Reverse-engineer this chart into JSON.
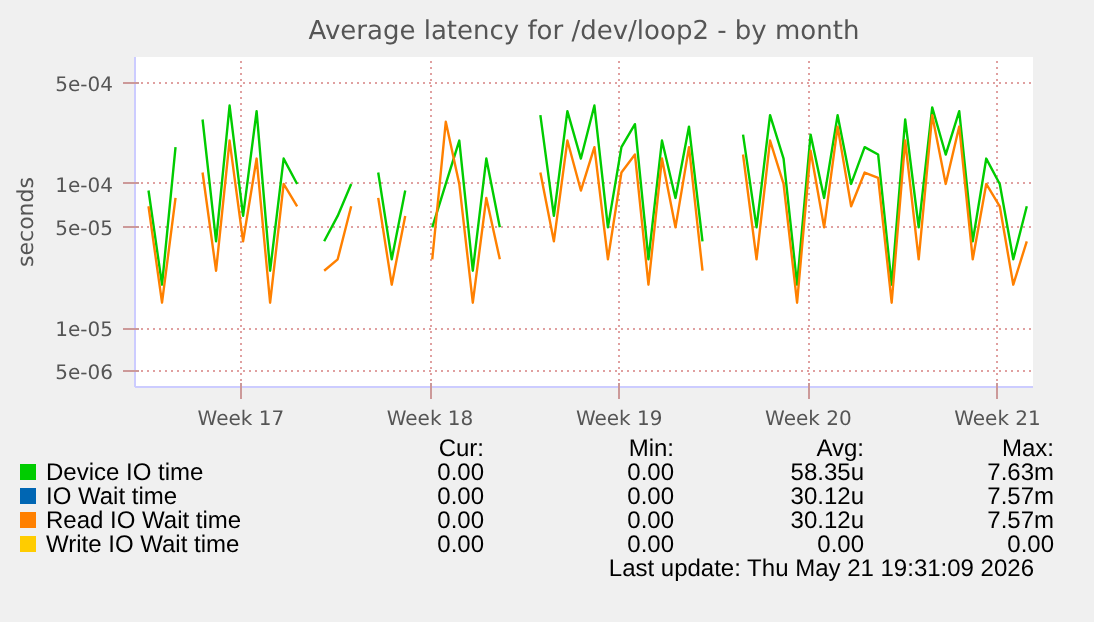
{
  "chart_data": {
    "type": "line",
    "title": "Average latency for /dev/loop2 - by month",
    "ylabel": "seconds",
    "x": [
      "2026-04-19T02:00",
      "2026-04-19T14:00",
      "2026-04-20T02:00",
      "2026-04-20T14:00",
      "2026-04-21T02:00",
      "2026-04-21T14:00",
      "2026-04-22T02:00",
      "2026-04-22T14:00",
      "2026-04-23T02:00",
      "2026-04-23T14:00",
      "2026-04-24T02:00",
      "2026-04-24T14:00",
      "2026-04-25T02:00",
      "2026-04-25T14:00",
      "2026-04-26T02:00",
      "2026-04-26T14:00",
      "2026-04-27T02:00",
      "2026-04-27T14:00",
      "2026-04-28T02:00",
      "2026-04-28T14:00",
      "2026-04-29T02:00",
      "2026-04-29T14:00",
      "2026-04-30T02:00",
      "2026-04-30T14:00",
      "2026-05-01T02:00",
      "2026-05-01T14:00",
      "2026-05-02T02:00",
      "2026-05-02T14:00",
      "2026-05-03T02:00",
      "2026-05-03T14:00",
      "2026-05-04T02:00",
      "2026-05-04T14:00",
      "2026-05-05T02:00",
      "2026-05-05T14:00",
      "2026-05-06T02:00",
      "2026-05-06T14:00",
      "2026-05-07T02:00",
      "2026-05-07T14:00",
      "2026-05-08T02:00",
      "2026-05-08T14:00",
      "2026-05-09T02:00",
      "2026-05-09T14:00",
      "2026-05-10T02:00",
      "2026-05-10T14:00",
      "2026-05-11T02:00",
      "2026-05-11T14:00",
      "2026-05-12T02:00",
      "2026-05-12T14:00",
      "2026-05-13T02:00",
      "2026-05-13T14:00",
      "2026-05-14T02:00",
      "2026-05-14T14:00",
      "2026-05-15T02:00",
      "2026-05-15T14:00",
      "2026-05-16T02:00",
      "2026-05-16T14:00",
      "2026-05-17T02:00",
      "2026-05-17T14:00",
      "2026-05-18T02:00",
      "2026-05-18T14:00",
      "2026-05-19T02:00",
      "2026-05-19T14:00",
      "2026-05-20T02:00",
      "2026-05-20T14:00",
      "2026-05-21T02:00",
      "2026-05-21T14:00"
    ],
    "xlim": [
      "2026-04-18T14:00",
      "2026-05-21T19:31"
    ],
    "xticks": [
      {
        "value": "2026-04-22T12:00",
        "label": "Week 17"
      },
      {
        "value": "2026-04-29T12:00",
        "label": "Week 18"
      },
      {
        "value": "2026-05-06T12:00",
        "label": "Week 19"
      },
      {
        "value": "2026-05-13T12:00",
        "label": "Week 20"
      },
      {
        "value": "2026-05-20T12:00",
        "label": "Week 21"
      }
    ],
    "ylim": [
      3.9e-06,
      0.00076
    ],
    "yticks": [
      {
        "value": 5e-06,
        "label": "5e-06"
      },
      {
        "value": 1e-05,
        "label": "1e-05"
      },
      {
        "value": 5e-05,
        "label": "5e-05"
      },
      {
        "value": 0.0001,
        "label": "1e-04"
      },
      {
        "value": 0.0005,
        "label": "5e-04"
      }
    ],
    "log": "y",
    "grid": true,
    "legend": "bottom",
    "marker": "none",
    "line_style": "solid",
    "series": [
      {
        "name": "Device IO time",
        "color": "#00cc00",
        "values": [
          9e-05,
          2e-05,
          0.00018,
          null,
          0.00028,
          4e-05,
          0.00035,
          6e-05,
          0.00032,
          2.5e-05,
          0.00015,
          0.0001,
          null,
          4e-05,
          6e-05,
          0.0001,
          null,
          0.00012,
          3e-05,
          9e-05,
          null,
          5e-05,
          0.0001,
          0.0002,
          2.5e-05,
          0.00015,
          5e-05,
          null,
          null,
          0.0003,
          6e-05,
          0.00032,
          0.00015,
          0.00035,
          5e-05,
          0.00018,
          0.00026,
          3e-05,
          0.0002,
          8e-05,
          0.00025,
          4e-05,
          null,
          null,
          0.00022,
          5e-05,
          0.0003,
          0.00015,
          2e-05,
          0.00022,
          8e-05,
          0.0003,
          0.0001,
          0.00018,
          0.00016,
          2e-05,
          0.00028,
          5e-05,
          0.00034,
          0.00016,
          0.00032,
          4e-05,
          0.00015,
          0.0001,
          3e-05,
          7e-05
        ]
      },
      {
        "name": "IO Wait time",
        "color": "#0066b3",
        "values": [
          null,
          null,
          null,
          null,
          null,
          null,
          null,
          null,
          null,
          null,
          null,
          null,
          null,
          null,
          null,
          null,
          null,
          null,
          null,
          null,
          null,
          null,
          null,
          null,
          null,
          null,
          null,
          null,
          null,
          null,
          null,
          null,
          null,
          null,
          null,
          null,
          null,
          null,
          null,
          null,
          null,
          null,
          null,
          null,
          null,
          null,
          null,
          null,
          null,
          null,
          null,
          null,
          null,
          null,
          null,
          null,
          null,
          null,
          null,
          null,
          null,
          null,
          null,
          null,
          null,
          null
        ]
      },
      {
        "name": "Read IO Wait time",
        "color": "#ff8000",
        "values": [
          7e-05,
          1.5e-05,
          8e-05,
          null,
          0.00012,
          2.5e-05,
          0.0002,
          4e-05,
          0.00015,
          1.5e-05,
          0.0001,
          7e-05,
          null,
          2.5e-05,
          3e-05,
          7e-05,
          null,
          8e-05,
          2e-05,
          6e-05,
          null,
          3e-05,
          0.00027,
          0.0001,
          1.5e-05,
          8e-05,
          3e-05,
          null,
          null,
          0.00012,
          4e-05,
          0.0002,
          9e-05,
          0.00018,
          3e-05,
          0.00012,
          0.00016,
          2e-05,
          0.00015,
          5e-05,
          0.00018,
          2.5e-05,
          null,
          null,
          0.00016,
          3e-05,
          0.0002,
          0.0001,
          1.5e-05,
          0.00017,
          5e-05,
          0.00025,
          7e-05,
          0.00012,
          0.00011,
          1.5e-05,
          0.0002,
          3e-05,
          0.0003,
          0.0001,
          0.00025,
          3e-05,
          0.0001,
          7e-05,
          2e-05,
          4e-05
        ]
      },
      {
        "name": "Write IO Wait time",
        "color": "#ffcc00",
        "values": [
          null,
          null,
          null,
          null,
          null,
          null,
          null,
          null,
          null,
          null,
          null,
          null,
          null,
          null,
          null,
          null,
          null,
          null,
          null,
          null,
          null,
          null,
          null,
          null,
          null,
          null,
          null,
          null,
          null,
          null,
          null,
          null,
          null,
          null,
          null,
          null,
          null,
          null,
          null,
          null,
          null,
          null,
          null,
          null,
          null,
          null,
          null,
          null,
          null,
          null,
          null,
          null,
          null,
          null,
          null,
          null,
          null,
          null,
          null,
          null,
          null,
          null,
          null,
          null,
          null,
          null
        ]
      }
    ],
    "annotations": [
      "Cur:",
      "Min:",
      "Avg:",
      "Max:",
      "0.00",
      "0.00",
      "58.35u",
      "7.63m",
      "0.00",
      "0.00",
      "30.12u",
      "7.57m",
      "0.00",
      "0.00",
      "30.12u",
      "7.57m",
      "0.00",
      "0.00",
      "0.00",
      "0.00",
      "Last update: Thu May 21 19:31:09 2026"
    ]
  }
}
